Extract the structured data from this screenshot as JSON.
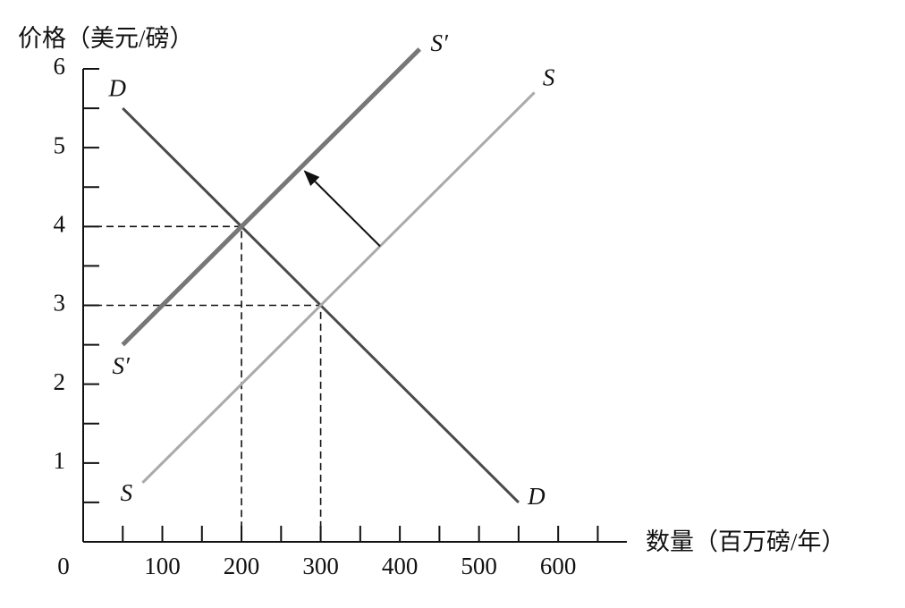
{
  "chart_data": {
    "type": "line",
    "y_label": "价格（美元/磅）",
    "x_label": "数量（百万磅/年）",
    "xlim": [
      0,
      680
    ],
    "ylim": [
      0,
      6
    ],
    "xticks": [
      0,
      100,
      200,
      300,
      400,
      500,
      600
    ],
    "yticks": [
      1,
      2,
      3,
      4,
      5,
      6
    ],
    "x_minor_ticks": [
      50,
      150,
      250,
      350,
      450,
      550,
      650
    ],
    "y_minor_ticks": [
      0.5,
      1.5,
      2.5,
      3.5,
      4.5,
      5.5
    ],
    "series": [
      {
        "name": "D",
        "color": "#4a4a4a",
        "line_width": 3,
        "x": [
          50,
          550
        ],
        "values": [
          5.5,
          0.5
        ]
      },
      {
        "name": "S",
        "color": "#aaaaaa",
        "line_width": 3,
        "x": [
          75,
          570
        ],
        "values": [
          0.75,
          5.7
        ]
      },
      {
        "name": "S′",
        "color": "#777777",
        "line_width": 5,
        "x": [
          50,
          425
        ],
        "values": [
          2.5,
          6.25
        ]
      }
    ],
    "equilibria": [
      {
        "x": 200,
        "y": 4
      },
      {
        "x": 300,
        "y": 3
      }
    ],
    "shift_arrow": {
      "from": [
        375,
        3.75
      ],
      "to": [
        280,
        4.7
      ]
    }
  }
}
